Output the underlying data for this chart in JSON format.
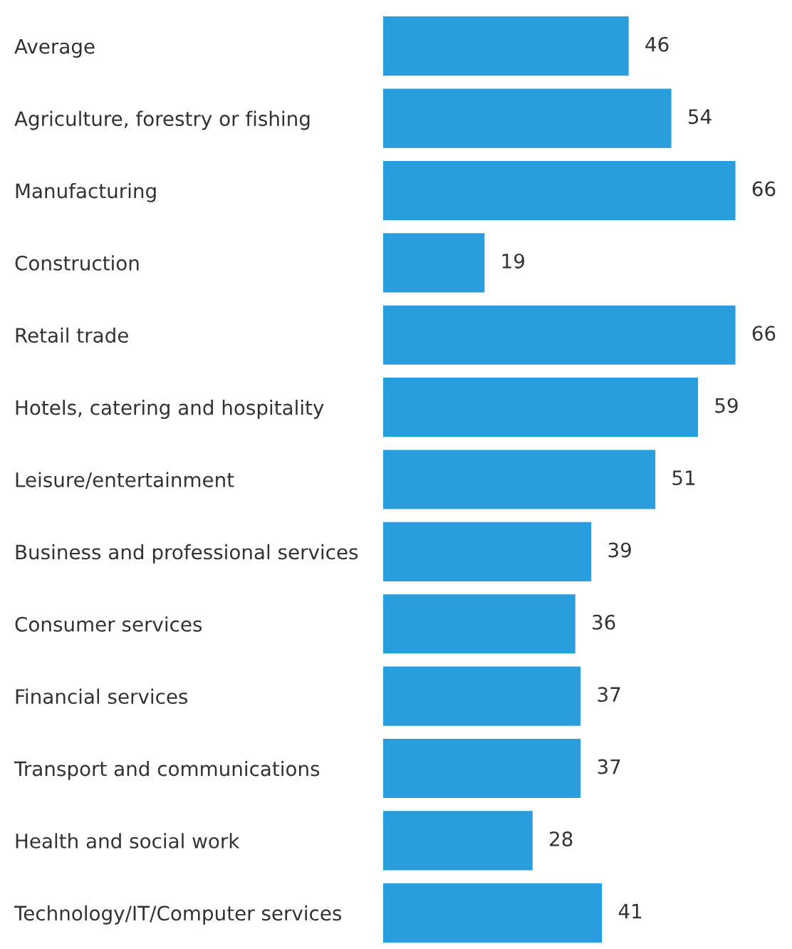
{
  "chart_data": {
    "type": "bar",
    "orientation": "horizontal",
    "categories": [
      "Average",
      "Agriculture, forestry or fishing",
      "Manufacturing",
      "Construction",
      "Retail trade",
      "Hotels, catering and hospitality",
      "Leisure/entertainment",
      "Business and professional services",
      "Consumer services",
      "Financial services",
      "Transport and communications",
      "Health and social work",
      "Technology/IT/Computer services"
    ],
    "values": [
      46,
      54,
      66,
      19,
      66,
      59,
      51,
      39,
      36,
      37,
      37,
      28,
      41
    ],
    "color": "#2a9ddc",
    "data_labels": true,
    "grid": false,
    "legend": false
  }
}
